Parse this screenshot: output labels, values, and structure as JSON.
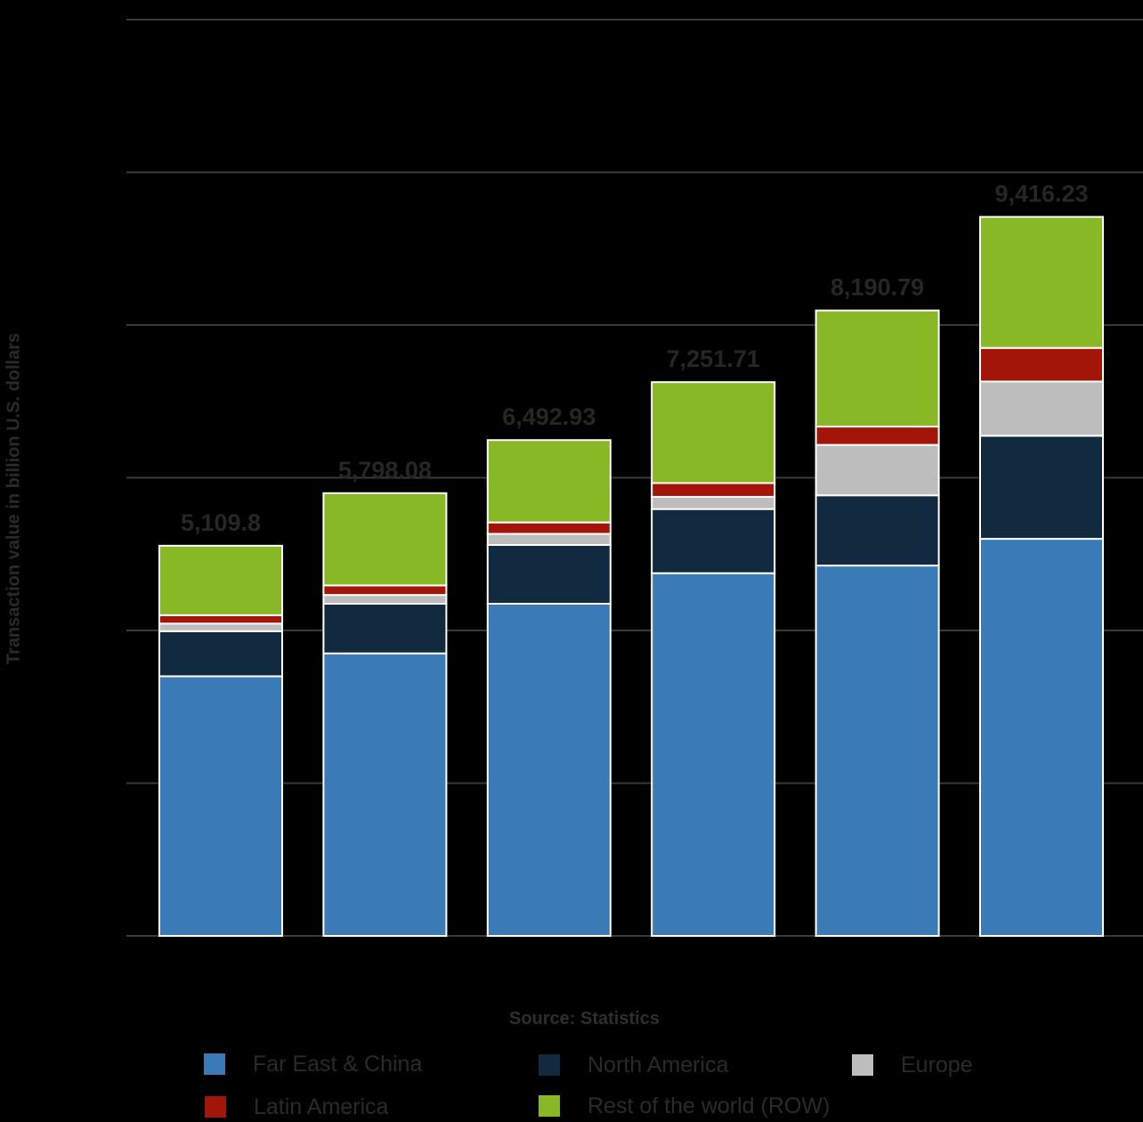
{
  "chart_data": {
    "type": "bar",
    "stacked": true,
    "ylabel": "Transaction value in billion U.S. dollars",
    "xlabel": "",
    "ylim": [
      0,
      12000
    ],
    "grid": true,
    "legend_position": "bottom",
    "source": "Source: Statistics",
    "categories": [
      "",
      "",
      "",
      "",
      "",
      ""
    ],
    "totals": [
      "5,109.8",
      "5,798.08",
      "6,492.93",
      "7,251.71",
      "8,190.79",
      "9,416.23"
    ],
    "series": [
      {
        "name": "Far East & China",
        "color": "#3a7bb7",
        "values": [
          3400,
          3700,
          4350,
          4750,
          4850,
          5200
        ]
      },
      {
        "name": "North America",
        "color": "#122a40",
        "values": [
          590,
          650,
          770,
          840,
          920,
          1350
        ]
      },
      {
        "name": "Europe",
        "color": "#bdbdbd",
        "values": [
          100,
          115,
          145,
          160,
          660,
          710
        ]
      },
      {
        "name": "Latin America",
        "color": "#a21508",
        "values": [
          110,
          125,
          150,
          180,
          240,
          440
        ]
      },
      {
        "name": "Rest of the world (ROW)",
        "color": "#89b826",
        "values": [
          909.8,
          1208.08,
          1077.93,
          1321.71,
          1520.79,
          1716.23
        ]
      }
    ]
  }
}
